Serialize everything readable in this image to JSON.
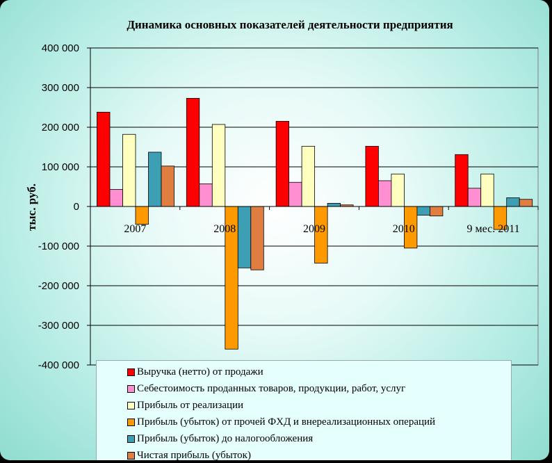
{
  "chart_data": {
    "type": "bar",
    "title": "Динамика основных показателей деятельности  предприятия",
    "ylabel": "тыс. руб.",
    "xlabel": "",
    "ylim": [
      -400000,
      400000
    ],
    "yticks": [
      400000,
      300000,
      200000,
      100000,
      0,
      -100000,
      -200000,
      -300000,
      -400000
    ],
    "ytick_labels": [
      "400 000",
      "300 000",
      "200 000",
      "100 000",
      "0",
      "-100 000",
      "-200 000",
      "-300 000",
      "-400 000"
    ],
    "grid": true,
    "legend_position": "bottom",
    "categories": [
      "2007",
      "2008",
      "2009",
      "2010",
      "9 мес. 2011"
    ],
    "series": [
      {
        "name": "Выручка (нетто) от продажи",
        "color": "#ff0000",
        "values": [
          238000,
          273000,
          215000,
          152000,
          131000
        ]
      },
      {
        "name": "Себестоимость проданных товаров, продукции, работ, услуг",
        "color": "#ff8fd0",
        "values": [
          43000,
          57000,
          61000,
          65000,
          46000
        ]
      },
      {
        "name": "Прибыль от реализации",
        "color": "#ffffc0",
        "values": [
          182000,
          207000,
          152000,
          82000,
          82000
        ]
      },
      {
        "name": "Прибыль (убыток) от прочей ФХД и внереализационных операций",
        "color": "#ff9900",
        "values": [
          -45000,
          -360000,
          -143000,
          -105000,
          -58000
        ]
      },
      {
        "name": "Прибыль (убыток) до налогообложения",
        "color": "#3c9fb4",
        "values": [
          137000,
          -155000,
          8000,
          -22000,
          22000
        ]
      },
      {
        "name": "Чистая прибыль (убыток)",
        "color": "#e07e42",
        "values": [
          102000,
          -160000,
          4000,
          -24000,
          18000
        ]
      }
    ]
  }
}
